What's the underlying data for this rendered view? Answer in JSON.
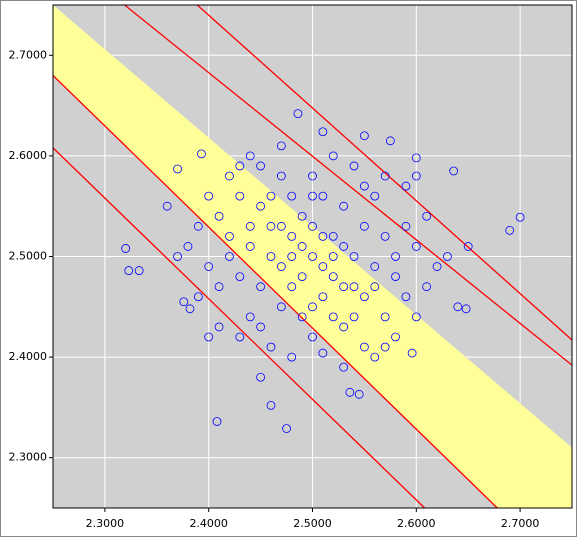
{
  "chart_data": {
    "type": "scatter",
    "xlim": [
      2.25,
      2.75
    ],
    "ylim": [
      2.25,
      2.75
    ],
    "xticks": [
      {
        "value": 2.3,
        "label": "2.3000"
      },
      {
        "value": 2.4,
        "label": "2.4000"
      },
      {
        "value": 2.5,
        "label": "2.5000"
      },
      {
        "value": 2.6,
        "label": "2.6000"
      },
      {
        "value": 2.7,
        "label": "2.7000"
      }
    ],
    "yticks": [
      {
        "value": 2.3,
        "label": "2.3000"
      },
      {
        "value": 2.4,
        "label": "2.4000"
      },
      {
        "value": 2.5,
        "label": "2.5000"
      },
      {
        "value": 2.6,
        "label": "2.6000"
      },
      {
        "value": 2.7,
        "label": "2.7000"
      }
    ],
    "grid": true,
    "band": {
      "color": "#ffff99",
      "upper": {
        "x": [
          2.25,
          2.75
        ],
        "y": [
          2.75,
          2.31
        ]
      },
      "lower": {
        "x": [
          2.25,
          2.678
        ],
        "y": [
          2.68,
          2.25
        ]
      }
    },
    "lines": [
      {
        "color": "#ff0000",
        "x": [
          2.389,
          2.75
        ],
        "y": [
          2.75,
          2.417
        ]
      },
      {
        "color": "#ff0000",
        "x": [
          2.319,
          2.75
        ],
        "y": [
          2.75,
          2.392
        ]
      },
      {
        "color": "#ff0000",
        "x": [
          2.25,
          2.678
        ],
        "y": [
          2.68,
          2.25
        ]
      },
      {
        "color": "#ff0000",
        "x": [
          2.25,
          2.608
        ],
        "y": [
          2.608,
          2.25
        ]
      }
    ],
    "points": {
      "color": "#0000ff",
      "x": [
        2.45,
        2.48,
        2.5,
        2.52,
        2.55,
        2.47,
        2.53,
        2.49,
        2.51,
        2.46,
        2.54,
        2.44,
        2.56,
        2.5,
        2.48,
        2.52,
        2.43,
        2.57,
        2.42,
        2.58,
        2.5,
        2.5,
        2.45,
        2.55,
        2.41,
        2.59,
        2.47,
        2.53,
        2.44,
        2.56,
        2.4,
        2.6,
        2.46,
        2.54,
        2.49,
        2.51,
        2.43,
        2.57,
        2.48,
        2.52,
        2.39,
        2.61,
        2.42,
        2.58,
        2.47,
        2.53,
        2.45,
        2.55,
        2.38,
        2.62,
        2.44,
        2.56,
        2.49,
        2.51,
        2.46,
        2.54,
        2.41,
        2.59,
        2.5,
        2.5,
        2.43,
        2.57,
        2.4,
        2.6,
        2.48,
        2.52,
        2.47,
        2.53,
        2.45,
        2.55,
        2.42,
        2.58,
        2.36,
        2.64,
        2.44,
        2.56,
        2.49,
        2.51,
        2.46,
        2.54,
        2.39,
        2.61,
        2.47,
        2.53,
        2.41,
        2.59,
        2.37,
        2.63,
        2.48,
        2.52,
        2.45,
        2.55,
        2.43,
        2.57,
        2.4,
        2.6,
        2.32,
        2.323,
        2.333,
        2.376,
        2.382,
        2.408,
        2.475,
        2.46,
        2.486,
        2.51,
        2.575,
        2.69,
        2.7,
        2.648,
        2.596,
        2.536,
        2.393,
        2.37,
        2.545,
        2.51,
        2.6,
        2.636,
        2.65
      ],
      "y": [
        2.55,
        2.52,
        2.5,
        2.48,
        2.46,
        2.49,
        2.51,
        2.54,
        2.46,
        2.53,
        2.47,
        2.51,
        2.49,
        2.53,
        2.47,
        2.52,
        2.56,
        2.44,
        2.5,
        2.5,
        2.45,
        2.56,
        2.47,
        2.53,
        2.54,
        2.46,
        2.58,
        2.43,
        2.44,
        2.56,
        2.49,
        2.51,
        2.5,
        2.5,
        2.48,
        2.52,
        2.48,
        2.52,
        2.56,
        2.44,
        2.53,
        2.47,
        2.58,
        2.42,
        2.45,
        2.55,
        2.59,
        2.41,
        2.51,
        2.49,
        2.53,
        2.47,
        2.51,
        2.49,
        2.56,
        2.44,
        2.47,
        2.53,
        2.58,
        2.42,
        2.42,
        2.58,
        2.56,
        2.44,
        2.5,
        2.5,
        2.53,
        2.47,
        2.43,
        2.57,
        2.52,
        2.48,
        2.55,
        2.45,
        2.6,
        2.4,
        2.44,
        2.56,
        2.41,
        2.59,
        2.46,
        2.54,
        2.61,
        2.39,
        2.43,
        2.57,
        2.5,
        2.5,
        2.4,
        2.6,
        2.38,
        2.62,
        2.59,
        2.41,
        2.42,
        2.58,
        2.508,
        2.486,
        2.486,
        2.455,
        2.448,
        2.336,
        2.329,
        2.352,
        2.642,
        2.624,
        2.615,
        2.526,
        2.539,
        2.448,
        2.404,
        2.365,
        2.602,
        2.587,
        2.363,
        2.404,
        2.598,
        2.585,
        2.51
      ]
    }
  }
}
